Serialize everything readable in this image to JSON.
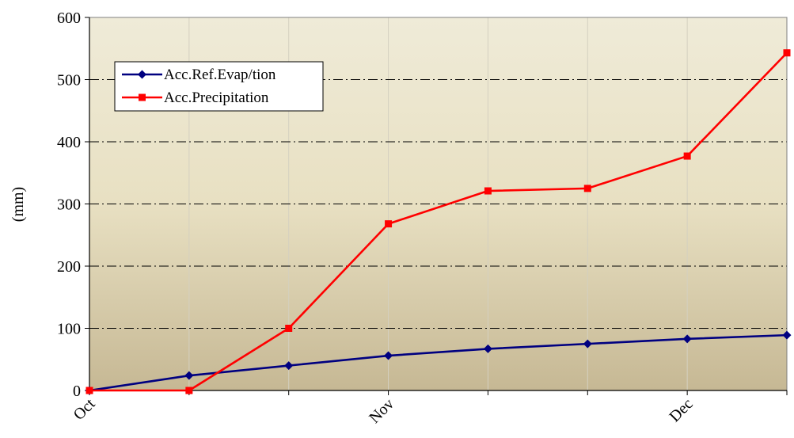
{
  "chart_data": {
    "type": "line",
    "title": "",
    "xlabel": "",
    "ylabel": "(mm)",
    "ylim": [
      0,
      600
    ],
    "yticks": [
      0,
      100,
      200,
      300,
      400,
      500,
      600
    ],
    "x_tick_labels": [
      {
        "label": "Oct",
        "index": 0
      },
      {
        "label": "Nov",
        "index": 3
      },
      {
        "label": "Dec",
        "index": 6
      }
    ],
    "x": [
      0,
      1,
      2,
      3,
      4,
      5,
      6,
      7
    ],
    "series": [
      {
        "name": "Acc.Ref.Evap/tion",
        "color": "#000080",
        "marker": "diamond",
        "values": [
          0,
          24,
          40,
          56,
          67,
          75,
          83,
          89
        ]
      },
      {
        "name": "Acc.Precipitation",
        "color": "#ff0000",
        "marker": "square",
        "values": [
          0,
          0,
          100,
          268,
          321,
          325,
          377,
          543
        ]
      }
    ],
    "grid": {
      "horizontal": "dash-dot",
      "vertical": "solid-light"
    },
    "legend_position": "top-left"
  }
}
